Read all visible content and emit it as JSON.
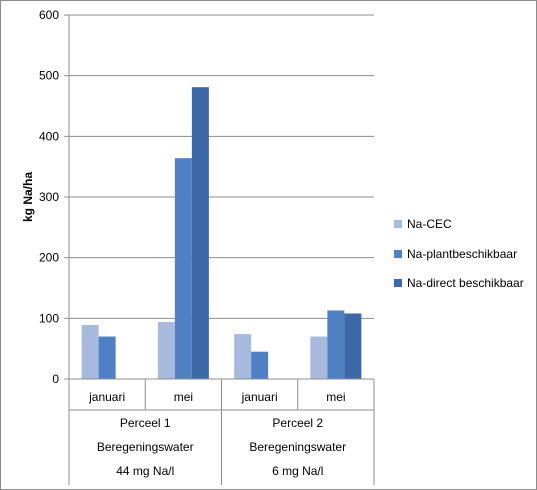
{
  "chart_data": {
    "type": "bar",
    "title": "",
    "ylabel": "kg Na/ha",
    "xlabel": "",
    "ylim": [
      0,
      600
    ],
    "yticks": [
      0,
      100,
      200,
      300,
      400,
      500,
      600
    ],
    "grid": true,
    "legend_position": "right",
    "categories": [
      "januari",
      "mei",
      "januari",
      "mei"
    ],
    "groups": [
      {
        "lines": [
          "Perceel 1",
          "Beregeningswater",
          "44 mg Na/l"
        ],
        "span": [
          0,
          1
        ]
      },
      {
        "lines": [
          "Perceel 2",
          "Beregeningswater",
          "6 mg Na/l"
        ],
        "span": [
          2,
          3
        ]
      }
    ],
    "series": [
      {
        "name": "Na-CEC",
        "color": "#a7b9dd",
        "values": [
          89,
          94,
          74,
          70
        ]
      },
      {
        "name": "Na-plantbeschikbaar",
        "color": "#4f80c4",
        "values": [
          70,
          364,
          45,
          113
        ]
      },
      {
        "name": "Na-direct beschikbaar",
        "color": "#3c68a8",
        "values": [
          null,
          481,
          null,
          108
        ]
      }
    ]
  }
}
